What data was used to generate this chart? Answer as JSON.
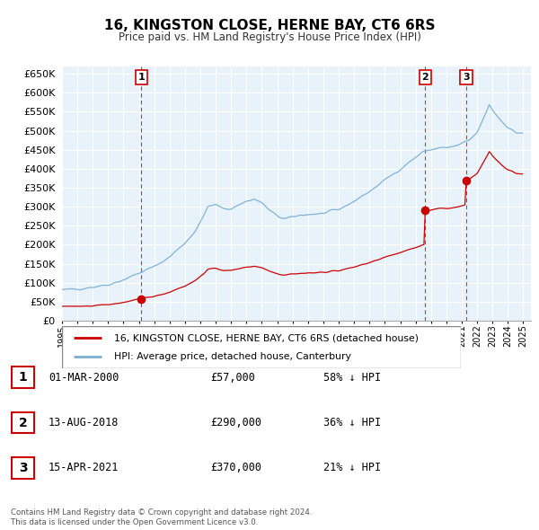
{
  "title": "16, KINGSTON CLOSE, HERNE BAY, CT6 6RS",
  "subtitle": "Price paid vs. HM Land Registry's House Price Index (HPI)",
  "legend_label_red": "16, KINGSTON CLOSE, HERNE BAY, CT6 6RS (detached house)",
  "legend_label_blue": "HPI: Average price, detached house, Canterbury",
  "footer1": "Contains HM Land Registry data © Crown copyright and database right 2024.",
  "footer2": "This data is licensed under the Open Government Licence v3.0.",
  "annotations": [
    {
      "num": "1",
      "date": "01-MAR-2000",
      "price": "£57,000",
      "pct": "58% ↓ HPI"
    },
    {
      "num": "2",
      "date": "13-AUG-2018",
      "price": "£290,000",
      "pct": "36% ↓ HPI"
    },
    {
      "num": "3",
      "date": "15-APR-2021",
      "price": "£370,000",
      "pct": "21% ↓ HPI"
    }
  ],
  "red_color": "#cc0000",
  "blue_color": "#7bafd4",
  "bg_color": "#dce8f5",
  "grid_color": "#c8d8e8",
  "plot_bg": "#e8f2fb",
  "ylim": [
    0,
    670000
  ],
  "yticks": [
    0,
    50000,
    100000,
    150000,
    200000,
    250000,
    300000,
    350000,
    400000,
    450000,
    500000,
    550000,
    600000,
    650000
  ],
  "xmin": 1995.0,
  "xmax": 2025.5,
  "sale_years": [
    2000.17,
    2018.62,
    2021.29
  ],
  "sale_prices": [
    57000,
    290000,
    370000
  ]
}
